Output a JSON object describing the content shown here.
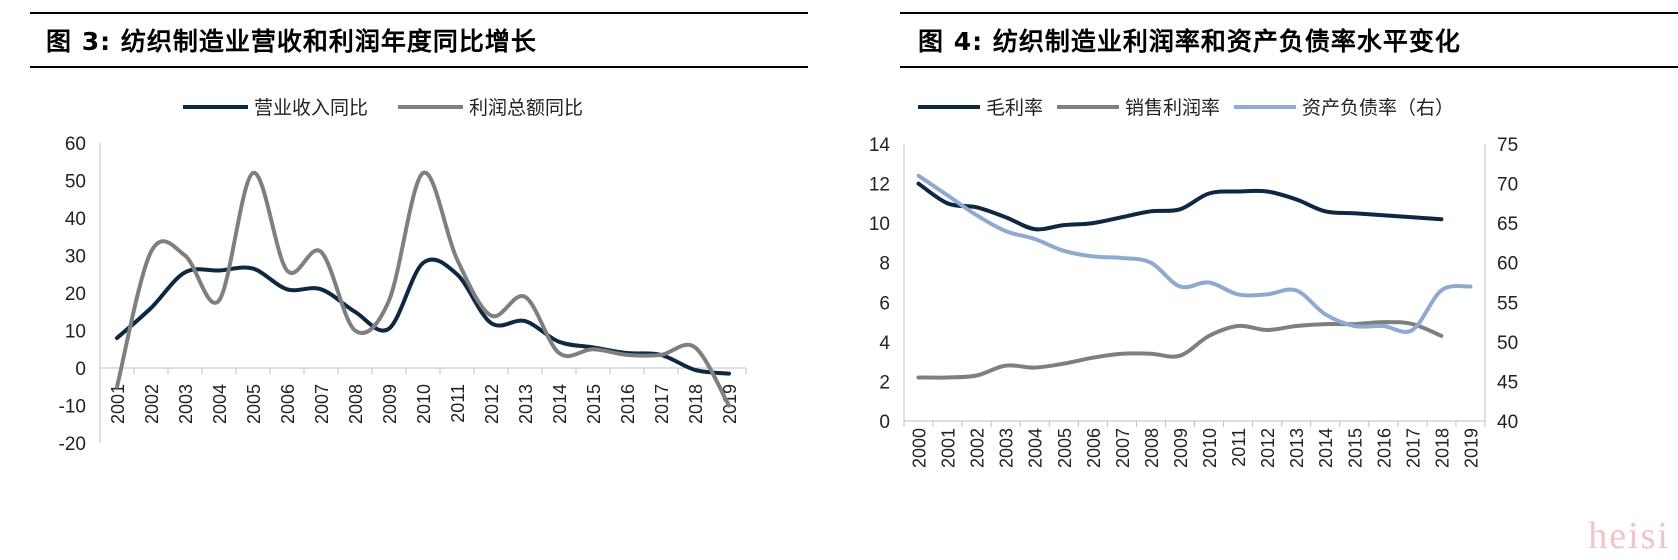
{
  "watermark": "heisi",
  "charts": [
    {
      "title_prefix": "图 ",
      "title_num": "3",
      "title_text": ":  纺织制造业营收和利润年度同比增长"
    },
    {
      "title_prefix": "图 ",
      "title_num": "4",
      "title_text": ":  纺织制造业利润率和资产负债率水平变化"
    }
  ],
  "chart_data": [
    {
      "type": "line",
      "title": "图 3: 纺织制造业营收和利润年度同比增长",
      "x": [
        "2001",
        "2002",
        "2003",
        "2004",
        "2005",
        "2006",
        "2007",
        "2008",
        "2009",
        "2010",
        "2011",
        "2012",
        "2013",
        "2014",
        "2015",
        "2016",
        "2017",
        "2018",
        "2019"
      ],
      "ylim": [
        -20,
        60
      ],
      "yticks": [
        -20,
        -10,
        0,
        10,
        20,
        30,
        40,
        50,
        60
      ],
      "legend_position": "top",
      "grid": false,
      "series": [
        {
          "name": "营业收入同比",
          "color": "#0e2841",
          "values": [
            8,
            16,
            25.5,
            26,
            26.5,
            21,
            21,
            15,
            10.5,
            28,
            25,
            12,
            12.5,
            7,
            5.5,
            4,
            3.5,
            -0.5,
            -1.5
          ]
        },
        {
          "name": "利润总额同比",
          "color": "#7f7f7f",
          "values": [
            -5,
            31,
            30,
            18,
            52,
            26,
            31,
            10,
            18,
            52,
            29,
            14,
            19,
            4,
            5,
            3.5,
            3.5,
            5.5,
            -10
          ]
        }
      ]
    },
    {
      "type": "line",
      "title": "图 4: 纺织制造业利润率和资产负债率水平变化",
      "x": [
        "2000",
        "2001",
        "2002",
        "2003",
        "2004",
        "2005",
        "2006",
        "2007",
        "2008",
        "2009",
        "2010",
        "2011",
        "2012",
        "2013",
        "2014",
        "2015",
        "2016",
        "2017",
        "2018",
        "2019"
      ],
      "ylim": [
        0,
        14
      ],
      "yticks": [
        0,
        2,
        4,
        6,
        8,
        10,
        12,
        14
      ],
      "y2lim": [
        40,
        75
      ],
      "y2ticks": [
        40,
        45,
        50,
        55,
        60,
        65,
        70,
        75
      ],
      "legend_position": "top",
      "grid": false,
      "series": [
        {
          "name": "毛利率",
          "axis": "left",
          "color": "#0e2841",
          "values": [
            12,
            11,
            10.8,
            10.3,
            9.7,
            9.9,
            10,
            10.3,
            10.6,
            10.7,
            11.5,
            11.6,
            11.6,
            11.2,
            10.6,
            10.5,
            10.4,
            10.3,
            10.2,
            null
          ]
        },
        {
          "name": "销售利润率",
          "axis": "left",
          "color": "#7f7f7f",
          "values": [
            2.2,
            2.2,
            2.3,
            2.8,
            2.7,
            2.9,
            3.2,
            3.4,
            3.4,
            3.3,
            4.3,
            4.8,
            4.6,
            4.8,
            4.9,
            4.9,
            5,
            4.9,
            4.3,
            null
          ]
        },
        {
          "name": "资产负债率（右）",
          "axis": "right",
          "color": "#8fa9d0",
          "values": [
            71,
            68.5,
            66,
            64,
            63,
            61.5,
            60.8,
            60.6,
            60,
            57,
            57.5,
            56,
            56,
            56.5,
            53.5,
            52,
            52,
            51.5,
            56.5,
            57
          ]
        }
      ]
    }
  ]
}
